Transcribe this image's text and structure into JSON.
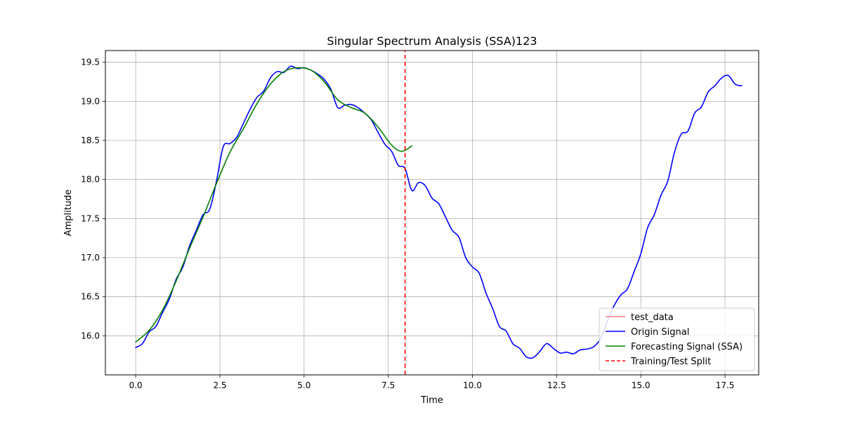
{
  "chart_data": {
    "type": "line",
    "title": "Singular Spectrum Analysis (SSA)123",
    "xlabel": "Time",
    "ylabel": "Amplitude",
    "xlim": [
      -0.9,
      18.5
    ],
    "ylim": [
      15.5,
      19.65
    ],
    "xticks": [
      0.0,
      2.5,
      5.0,
      7.5,
      10.0,
      12.5,
      15.0,
      17.5
    ],
    "xtick_labels": [
      "0.0",
      "2.5",
      "5.0",
      "7.5",
      "10.0",
      "12.5",
      "15.0",
      "17.5"
    ],
    "yticks": [
      16.0,
      16.5,
      17.0,
      17.5,
      18.0,
      18.5,
      19.0,
      19.5
    ],
    "ytick_labels": [
      "16.0",
      "16.5",
      "17.0",
      "17.5",
      "18.0",
      "18.5",
      "19.0",
      "19.5"
    ],
    "grid": true,
    "legend_position": "bottom-right",
    "split_x": 8.0,
    "series": [
      {
        "name": "test_data",
        "color": "#ff7f7f",
        "style": "solid",
        "x": [],
        "y": []
      },
      {
        "name": "Origin Signal",
        "color": "#0000ff",
        "style": "solid",
        "x": [
          0.0,
          0.2,
          0.4,
          0.6,
          0.8,
          1.0,
          1.2,
          1.4,
          1.6,
          1.8,
          2.0,
          2.2,
          2.4,
          2.6,
          2.8,
          3.0,
          3.2,
          3.4,
          3.6,
          3.8,
          4.0,
          4.2,
          4.4,
          4.6,
          4.8,
          5.0,
          5.2,
          5.4,
          5.6,
          5.8,
          6.0,
          6.2,
          6.4,
          6.6,
          6.8,
          7.0,
          7.2,
          7.4,
          7.6,
          7.8,
          8.0,
          8.2,
          8.4,
          8.6,
          8.8,
          9.0,
          9.2,
          9.4,
          9.6,
          9.8,
          10.0,
          10.2,
          10.4,
          10.6,
          10.8,
          11.0,
          11.2,
          11.4,
          11.6,
          11.8,
          12.0,
          12.2,
          12.4,
          12.6,
          12.8,
          13.0,
          13.2,
          13.4,
          13.6,
          13.8,
          14.0,
          14.2,
          14.4,
          14.6,
          14.8,
          15.0,
          15.2,
          15.4,
          15.6,
          15.8,
          16.0,
          16.2,
          16.4,
          16.6,
          16.8,
          17.0,
          17.2,
          17.4,
          17.6,
          17.8,
          18.0
        ],
        "y": [
          15.85,
          15.9,
          16.05,
          16.12,
          16.3,
          16.47,
          16.72,
          16.88,
          17.15,
          17.35,
          17.55,
          17.62,
          17.98,
          18.42,
          18.46,
          18.54,
          18.72,
          18.9,
          19.05,
          19.13,
          19.3,
          19.38,
          19.37,
          19.45,
          19.42,
          19.43,
          19.4,
          19.35,
          19.28,
          19.15,
          18.92,
          18.95,
          18.96,
          18.92,
          18.85,
          18.76,
          18.6,
          18.45,
          18.36,
          18.18,
          18.14,
          17.86,
          17.96,
          17.92,
          17.76,
          17.69,
          17.52,
          17.35,
          17.26,
          17.0,
          16.88,
          16.8,
          16.55,
          16.35,
          16.12,
          16.06,
          15.9,
          15.84,
          15.73,
          15.72,
          15.8,
          15.9,
          15.84,
          15.78,
          15.79,
          15.77,
          15.82,
          15.83,
          15.86,
          15.96,
          16.18,
          16.38,
          16.52,
          16.6,
          16.82,
          17.05,
          17.38,
          17.55,
          17.8,
          17.98,
          18.35,
          18.58,
          18.62,
          18.85,
          18.93,
          19.12,
          19.2,
          19.3,
          19.33,
          19.22,
          19.2
        ]
      },
      {
        "name": "Forecasting Signal (SSA)",
        "color": "#008000",
        "style": "solid",
        "x": [
          0.0,
          0.4,
          0.8,
          1.2,
          1.6,
          2.0,
          2.4,
          2.8,
          3.2,
          3.6,
          4.0,
          4.4,
          4.8,
          5.2,
          5.6,
          6.0,
          6.4,
          6.8,
          7.2,
          7.6,
          7.9,
          8.2
        ],
        "y": [
          15.92,
          16.07,
          16.33,
          16.7,
          17.12,
          17.52,
          17.95,
          18.35,
          18.65,
          18.97,
          19.22,
          19.38,
          19.43,
          19.4,
          19.25,
          19.02,
          18.92,
          18.85,
          18.67,
          18.44,
          18.36,
          18.43
        ]
      },
      {
        "name": "Training/Test Split",
        "color": "#ff0000",
        "style": "dashed",
        "x": [
          8.0,
          8.0
        ],
        "y": [
          15.5,
          19.65
        ]
      }
    ]
  }
}
